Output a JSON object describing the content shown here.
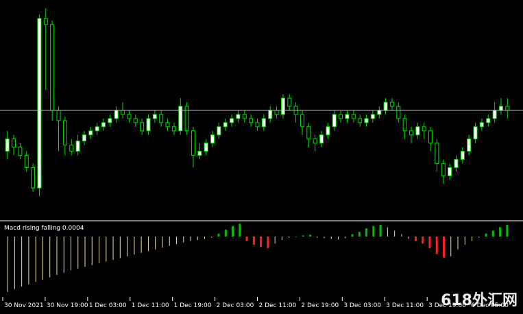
{
  "window": {
    "top_text": "",
    "indicator_label": "Macd rising falling 0.0004",
    "watermark": "618外汇网"
  },
  "colors": {
    "background": "#000000",
    "candle": "#00e000",
    "bull_fill": "#ffffff",
    "bear_fill": "#000000",
    "price_line": "#c0c0c0",
    "separator": "#ffffff",
    "hist_rise": "#00c000",
    "hist_fall": "#ff2020",
    "hist_neutral": "#f0e0a0"
  },
  "chart_data": {
    "type": "candlestick",
    "x_labels": [
      "30 Nov 2021",
      "30 Nov 19:00",
      "1 Dec 03:00",
      "1 Dec 11:00",
      "1 Dec 19:00",
      "2 Dec 03:00",
      "2 Dec 11:00",
      "2 Dec 19:00",
      "3 Dec 03:00",
      "3 Dec 11:00",
      "3 Dec 19:00",
      "6 Dec 05:00"
    ],
    "price_line": 0.5,
    "candles": [
      [
        0.3,
        0.36,
        0.4,
        0.26
      ],
      [
        0.36,
        0.32,
        0.38,
        0.28
      ],
      [
        0.32,
        0.28,
        0.34,
        0.26
      ],
      [
        0.28,
        0.22,
        0.3,
        0.2
      ],
      [
        0.22,
        0.12,
        0.24,
        0.1
      ],
      [
        0.12,
        0.95,
        0.97,
        0.08
      ],
      [
        0.95,
        0.92,
        1.0,
        0.6
      ],
      [
        0.92,
        0.5,
        0.94,
        0.45
      ],
      [
        0.5,
        0.45,
        0.52,
        0.3
      ],
      [
        0.45,
        0.33,
        0.47,
        0.28
      ],
      [
        0.33,
        0.3,
        0.36,
        0.28
      ],
      [
        0.3,
        0.35,
        0.38,
        0.28
      ],
      [
        0.35,
        0.38,
        0.4,
        0.33
      ],
      [
        0.38,
        0.4,
        0.42,
        0.36
      ],
      [
        0.4,
        0.42,
        0.44,
        0.38
      ],
      [
        0.42,
        0.44,
        0.46,
        0.4
      ],
      [
        0.44,
        0.46,
        0.48,
        0.42
      ],
      [
        0.46,
        0.5,
        0.52,
        0.44
      ],
      [
        0.5,
        0.48,
        0.54,
        0.46
      ],
      [
        0.48,
        0.46,
        0.5,
        0.44
      ],
      [
        0.46,
        0.44,
        0.48,
        0.42
      ],
      [
        0.44,
        0.4,
        0.46,
        0.38
      ],
      [
        0.4,
        0.46,
        0.48,
        0.38
      ],
      [
        0.46,
        0.48,
        0.5,
        0.44
      ],
      [
        0.48,
        0.44,
        0.5,
        0.42
      ],
      [
        0.44,
        0.42,
        0.46,
        0.4
      ],
      [
        0.42,
        0.4,
        0.44,
        0.38
      ],
      [
        0.4,
        0.52,
        0.56,
        0.38
      ],
      [
        0.52,
        0.4,
        0.54,
        0.38
      ],
      [
        0.4,
        0.28,
        0.42,
        0.22
      ],
      [
        0.28,
        0.3,
        0.34,
        0.26
      ],
      [
        0.3,
        0.34,
        0.36,
        0.28
      ],
      [
        0.34,
        0.38,
        0.4,
        0.32
      ],
      [
        0.38,
        0.42,
        0.44,
        0.36
      ],
      [
        0.42,
        0.44,
        0.46,
        0.4
      ],
      [
        0.44,
        0.46,
        0.48,
        0.42
      ],
      [
        0.46,
        0.48,
        0.5,
        0.44
      ],
      [
        0.48,
        0.46,
        0.5,
        0.44
      ],
      [
        0.46,
        0.44,
        0.48,
        0.42
      ],
      [
        0.44,
        0.42,
        0.46,
        0.4
      ],
      [
        0.42,
        0.46,
        0.48,
        0.4
      ],
      [
        0.46,
        0.5,
        0.52,
        0.44
      ],
      [
        0.5,
        0.48,
        0.52,
        0.46
      ],
      [
        0.48,
        0.56,
        0.58,
        0.46
      ],
      [
        0.56,
        0.52,
        0.58,
        0.5
      ],
      [
        0.52,
        0.48,
        0.54,
        0.44
      ],
      [
        0.48,
        0.42,
        0.5,
        0.38
      ],
      [
        0.42,
        0.36,
        0.44,
        0.32
      ],
      [
        0.36,
        0.34,
        0.38,
        0.3
      ],
      [
        0.34,
        0.38,
        0.4,
        0.32
      ],
      [
        0.38,
        0.42,
        0.44,
        0.36
      ],
      [
        0.42,
        0.48,
        0.5,
        0.4
      ],
      [
        0.48,
        0.46,
        0.5,
        0.44
      ],
      [
        0.46,
        0.48,
        0.5,
        0.44
      ],
      [
        0.48,
        0.46,
        0.5,
        0.44
      ],
      [
        0.46,
        0.44,
        0.48,
        0.42
      ],
      [
        0.44,
        0.46,
        0.48,
        0.42
      ],
      [
        0.46,
        0.48,
        0.5,
        0.44
      ],
      [
        0.48,
        0.5,
        0.52,
        0.46
      ],
      [
        0.5,
        0.54,
        0.56,
        0.48
      ],
      [
        0.54,
        0.52,
        0.56,
        0.5
      ],
      [
        0.52,
        0.46,
        0.54,
        0.44
      ],
      [
        0.46,
        0.4,
        0.48,
        0.36
      ],
      [
        0.4,
        0.38,
        0.42,
        0.34
      ],
      [
        0.38,
        0.42,
        0.44,
        0.36
      ],
      [
        0.42,
        0.4,
        0.44,
        0.36
      ],
      [
        0.4,
        0.34,
        0.42,
        0.3
      ],
      [
        0.34,
        0.24,
        0.36,
        0.2
      ],
      [
        0.24,
        0.18,
        0.26,
        0.14
      ],
      [
        0.18,
        0.22,
        0.24,
        0.16
      ],
      [
        0.22,
        0.26,
        0.28,
        0.2
      ],
      [
        0.26,
        0.3,
        0.32,
        0.24
      ],
      [
        0.3,
        0.36,
        0.38,
        0.28
      ],
      [
        0.36,
        0.42,
        0.44,
        0.34
      ],
      [
        0.42,
        0.44,
        0.46,
        0.4
      ],
      [
        0.44,
        0.46,
        0.48,
        0.42
      ],
      [
        0.46,
        0.5,
        0.54,
        0.44
      ],
      [
        0.5,
        0.52,
        0.56,
        0.48
      ],
      [
        0.52,
        0.5,
        0.56,
        0.46
      ]
    ],
    "histogram": [
      -0.95,
      -0.9,
      -0.86,
      -0.82,
      -0.78,
      -0.74,
      -0.7,
      -0.66,
      -0.62,
      -0.58,
      -0.55,
      -0.52,
      -0.49,
      -0.46,
      -0.43,
      -0.4,
      -0.37,
      -0.34,
      -0.31,
      -0.28,
      -0.25,
      -0.22,
      -0.19,
      -0.16,
      -0.13,
      -0.1,
      -0.08,
      -0.06,
      -0.04,
      -0.02,
      0.05,
      0.12,
      0.18,
      0.22,
      -0.08,
      -0.14,
      -0.18,
      -0.2,
      -0.12,
      -0.06,
      -0.02,
      -0.01,
      0.02,
      0.03,
      -0.02,
      -0.03,
      -0.04,
      -0.05,
      -0.03,
      0.04,
      0.08,
      0.14,
      0.18,
      0.2,
      0.16,
      0.1,
      0.04,
      -0.04,
      -0.08,
      -0.12,
      -0.2,
      -0.3,
      -0.36,
      -0.34,
      -0.22,
      -0.14,
      -0.08,
      -0.02,
      0.05,
      0.1,
      0.16,
      0.2
    ]
  }
}
